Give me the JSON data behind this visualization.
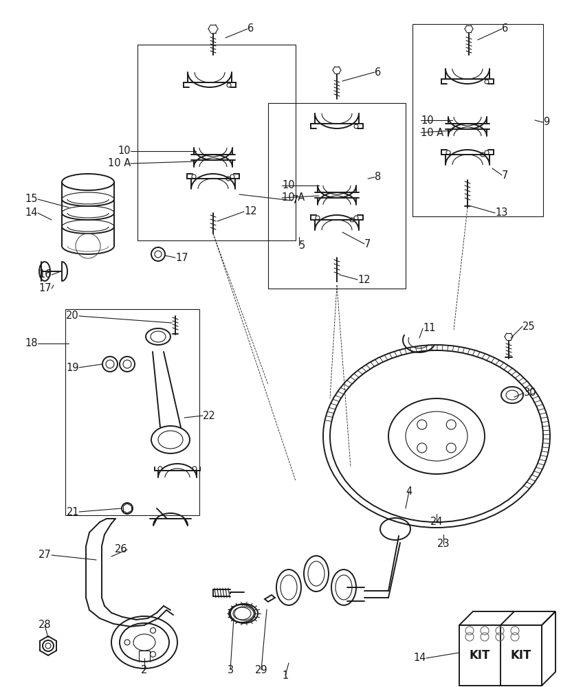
{
  "background_color": "#ffffff",
  "line_color": "#1a1a1a",
  "figsize": [
    8.16,
    10.0
  ],
  "dpi": 100,
  "font_size": 10.5,
  "font_family": "DejaVu Sans",
  "lw_main": 1.4,
  "lw_thin": 0.8,
  "lw_leader": 0.8
}
